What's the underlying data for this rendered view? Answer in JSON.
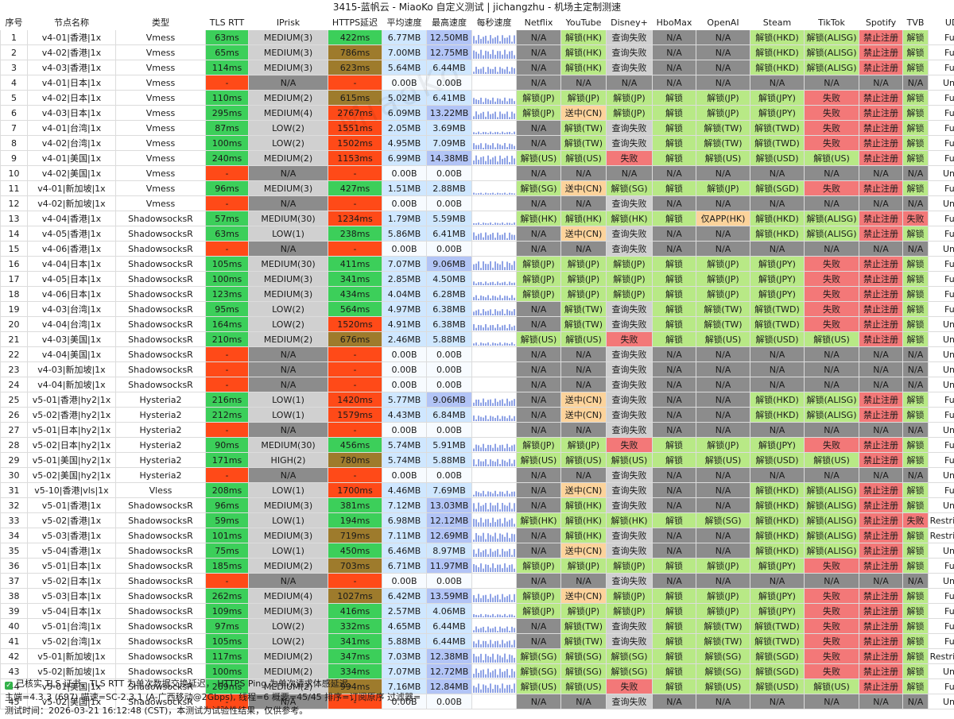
{
  "title": "3415-蓝帆云 - MiaoKo 自定义测试 | jichangzhu - 机场主定制测速",
  "watermark": "MiaoKo",
  "headers": [
    "序号",
    "节点名称",
    "类型",
    "TLS RTT",
    "IPrisk",
    "HTTPS延迟",
    "平均速度",
    "最高速度",
    "每秒速度",
    "Netflix",
    "YouTube",
    "Disney+",
    "HboMax",
    "OpenAI",
    "Steam",
    "TikTok",
    "Spotify",
    "TVB",
    "UDP类型"
  ],
  "rows": [
    [
      "1",
      "v4-01|香港|1x",
      "Vmess",
      "63ms",
      "MEDIUM(3)",
      "422ms",
      "6.77MB",
      "12.50MB",
      "",
      "N/A",
      "解锁(HK)",
      "查询失败",
      "N/A",
      "N/A",
      "解锁(HKD)",
      "解锁(ALISG)",
      "禁止注册",
      "解锁",
      "FullCone"
    ],
    [
      "2",
      "v4-02|香港|1x",
      "Vmess",
      "65ms",
      "MEDIUM(3)",
      "786ms",
      "7.00MB",
      "12.75MB",
      "",
      "N/A",
      "解锁(HK)",
      "查询失败",
      "N/A",
      "N/A",
      "解锁(HKD)",
      "解锁(ALISG)",
      "禁止注册",
      "解锁",
      "FullCone"
    ],
    [
      "3",
      "v4-03|香港|1x",
      "Vmess",
      "114ms",
      "MEDIUM(3)",
      "623ms",
      "5.64MB",
      "6.44MB",
      "",
      "N/A",
      "解锁(HK)",
      "查询失败",
      "N/A",
      "N/A",
      "解锁(HKD)",
      "解锁(ALISG)",
      "禁止注册",
      "解锁",
      "FullCone"
    ],
    [
      "4",
      "v4-01|日本|1x",
      "Vmess",
      "-",
      "N/A",
      "-",
      "0.00B",
      "0.00B",
      "",
      "N/A",
      "N/A",
      "N/A",
      "N/A",
      "N/A",
      "N/A",
      "N/A",
      "N/A",
      "N/A",
      "Unknown"
    ],
    [
      "5",
      "v4-02|日本|1x",
      "Vmess",
      "110ms",
      "MEDIUM(2)",
      "615ms",
      "5.02MB",
      "6.41MB",
      "",
      "解锁(JP)",
      "解锁(JP)",
      "解锁(JP)",
      "解锁",
      "解锁(JP)",
      "解锁(JPY)",
      "失败",
      "禁止注册",
      "解锁",
      "FullCone"
    ],
    [
      "6",
      "v4-03|日本|1x",
      "Vmess",
      "295ms",
      "MEDIUM(4)",
      "2767ms",
      "6.09MB",
      "13.22MB",
      "",
      "解锁(JP)",
      "送中(CN)",
      "解锁(JP)",
      "解锁",
      "解锁(JP)",
      "解锁(JPY)",
      "失败",
      "禁止注册",
      "解锁",
      "FullCone"
    ],
    [
      "7",
      "v4-01|台湾|1x",
      "Vmess",
      "87ms",
      "LOW(2)",
      "1551ms",
      "2.05MB",
      "3.69MB",
      "",
      "N/A",
      "解锁(TW)",
      "查询失败",
      "解锁",
      "解锁(TW)",
      "解锁(TWD)",
      "失败",
      "禁止注册",
      "解锁",
      "FullCone"
    ],
    [
      "8",
      "v4-02|台湾|1x",
      "Vmess",
      "100ms",
      "LOW(2)",
      "1502ms",
      "4.95MB",
      "7.09MB",
      "",
      "N/A",
      "解锁(TW)",
      "查询失败",
      "解锁",
      "解锁(TW)",
      "解锁(TWD)",
      "失败",
      "禁止注册",
      "解锁",
      "FullCone"
    ],
    [
      "9",
      "v4-01|美国|1x",
      "Vmess",
      "240ms",
      "MEDIUM(2)",
      "1153ms",
      "6.99MB",
      "14.38MB",
      "",
      "解锁(US)",
      "解锁(US)",
      "失败",
      "解锁",
      "解锁(US)",
      "解锁(USD)",
      "解锁(US)",
      "禁止注册",
      "解锁",
      "FullCone"
    ],
    [
      "10",
      "v4-02|美国|1x",
      "Vmess",
      "-",
      "N/A",
      "-",
      "0.00B",
      "0.00B",
      "",
      "N/A",
      "N/A",
      "N/A",
      "N/A",
      "N/A",
      "N/A",
      "N/A",
      "N/A",
      "N/A",
      "Unknown"
    ],
    [
      "11",
      "v4-01|新加坡|1x",
      "Vmess",
      "96ms",
      "MEDIUM(3)",
      "427ms",
      "1.51MB",
      "2.88MB",
      "",
      "解锁(SG)",
      "送中(CN)",
      "解锁(SG)",
      "解锁",
      "解锁(JP)",
      "解锁(SGD)",
      "失败",
      "禁止注册",
      "解锁",
      "FullCone"
    ],
    [
      "12",
      "v4-02|新加坡|1x",
      "Vmess",
      "-",
      "N/A",
      "-",
      "0.00B",
      "0.00B",
      "",
      "N/A",
      "N/A",
      "查询失败",
      "N/A",
      "N/A",
      "N/A",
      "N/A",
      "N/A",
      "N/A",
      "Unknown"
    ],
    [
      "13",
      "v4-04|香港|1x",
      "ShadowsocksR",
      "57ms",
      "MEDIUM(30)",
      "1234ms",
      "1.79MB",
      "5.59MB",
      "",
      "解锁(HK)",
      "解锁(HK)",
      "解锁(HK)",
      "解锁",
      "仅APP(HK)",
      "解锁(HKD)",
      "解锁(ALISG)",
      "禁止注册",
      "失败",
      "FullCone"
    ],
    [
      "14",
      "v4-05|香港|1x",
      "ShadowsocksR",
      "63ms",
      "LOW(1)",
      "238ms",
      "5.86MB",
      "6.41MB",
      "",
      "N/A",
      "送中(CN)",
      "查询失败",
      "N/A",
      "N/A",
      "解锁(HKD)",
      "解锁(ALISG)",
      "禁止注册",
      "解锁",
      "FullCone"
    ],
    [
      "15",
      "v4-06|香港|1x",
      "ShadowsocksR",
      "-",
      "N/A",
      "-",
      "0.00B",
      "0.00B",
      "",
      "N/A",
      "N/A",
      "查询失败",
      "N/A",
      "N/A",
      "N/A",
      "N/A",
      "N/A",
      "N/A",
      "Unknown"
    ],
    [
      "16",
      "v4-04|日本|1x",
      "ShadowsocksR",
      "105ms",
      "MEDIUM(30)",
      "411ms",
      "7.07MB",
      "9.06MB",
      "",
      "解锁(JP)",
      "解锁(JP)",
      "解锁(JP)",
      "解锁",
      "解锁(JP)",
      "解锁(JPY)",
      "失败",
      "禁止注册",
      "解锁",
      "FullCone"
    ],
    [
      "17",
      "v4-05|日本|1x",
      "ShadowsocksR",
      "100ms",
      "MEDIUM(3)",
      "341ms",
      "2.85MB",
      "4.50MB",
      "",
      "解锁(JP)",
      "解锁(JP)",
      "解锁(JP)",
      "解锁",
      "解锁(JP)",
      "解锁(JPY)",
      "失败",
      "禁止注册",
      "解锁",
      "FullCone"
    ],
    [
      "18",
      "v4-06|日本|1x",
      "ShadowsocksR",
      "123ms",
      "MEDIUM(3)",
      "434ms",
      "4.04MB",
      "6.28MB",
      "",
      "解锁(JP)",
      "解锁(JP)",
      "解锁(JP)",
      "解锁",
      "解锁(JP)",
      "解锁(JPY)",
      "失败",
      "禁止注册",
      "解锁",
      "FullCone"
    ],
    [
      "19",
      "v4-03|台湾|1x",
      "ShadowsocksR",
      "95ms",
      "LOW(2)",
      "564ms",
      "4.97MB",
      "6.38MB",
      "",
      "N/A",
      "解锁(TW)",
      "查询失败",
      "解锁",
      "解锁(TW)",
      "解锁(TWD)",
      "失败",
      "禁止注册",
      "解锁",
      "FullCone"
    ],
    [
      "20",
      "v4-04|台湾|1x",
      "ShadowsocksR",
      "164ms",
      "LOW(2)",
      "1520ms",
      "4.91MB",
      "6.38MB",
      "",
      "N/A",
      "解锁(TW)",
      "查询失败",
      "解锁",
      "解锁(TW)",
      "解锁(TWD)",
      "失败",
      "禁止注册",
      "解锁",
      "Unknown"
    ],
    [
      "21",
      "v4-03|美国|1x",
      "ShadowsocksR",
      "210ms",
      "MEDIUM(2)",
      "676ms",
      "2.46MB",
      "5.88MB",
      "",
      "解锁(US)",
      "解锁(US)",
      "失败",
      "解锁",
      "解锁(US)",
      "解锁(USD)",
      "解锁(US)",
      "禁止注册",
      "解锁",
      "Unknown"
    ],
    [
      "22",
      "v4-04|美国|1x",
      "ShadowsocksR",
      "-",
      "N/A",
      "-",
      "0.00B",
      "0.00B",
      "",
      "N/A",
      "N/A",
      "查询失败",
      "N/A",
      "N/A",
      "N/A",
      "N/A",
      "N/A",
      "N/A",
      "Unknown"
    ],
    [
      "23",
      "v4-03|新加坡|1x",
      "ShadowsocksR",
      "-",
      "N/A",
      "-",
      "0.00B",
      "0.00B",
      "",
      "N/A",
      "N/A",
      "查询失败",
      "N/A",
      "N/A",
      "N/A",
      "N/A",
      "N/A",
      "N/A",
      "Unknown"
    ],
    [
      "24",
      "v4-04|新加坡|1x",
      "ShadowsocksR",
      "-",
      "N/A",
      "-",
      "0.00B",
      "0.00B",
      "",
      "N/A",
      "N/A",
      "查询失败",
      "N/A",
      "N/A",
      "N/A",
      "N/A",
      "N/A",
      "N/A",
      "Unknown"
    ],
    [
      "25",
      "v5-01|香港|hy2|1x",
      "Hysteria2",
      "216ms",
      "LOW(1)",
      "1420ms",
      "5.77MB",
      "9.06MB",
      "",
      "N/A",
      "送中(CN)",
      "查询失败",
      "N/A",
      "N/A",
      "解锁(HKD)",
      "解锁(ALISG)",
      "禁止注册",
      "解锁",
      "FullCone"
    ],
    [
      "26",
      "v5-02|香港|hy2|1x",
      "Hysteria2",
      "212ms",
      "LOW(1)",
      "1579ms",
      "4.43MB",
      "6.84MB",
      "",
      "N/A",
      "送中(CN)",
      "查询失败",
      "N/A",
      "N/A",
      "解锁(HKD)",
      "解锁(ALISG)",
      "禁止注册",
      "解锁",
      "FullCone"
    ],
    [
      "27",
      "v5-01|日本|hy2|1x",
      "Hysteria2",
      "-",
      "N/A",
      "-",
      "0.00B",
      "0.00B",
      "",
      "N/A",
      "N/A",
      "查询失败",
      "N/A",
      "N/A",
      "N/A",
      "N/A",
      "N/A",
      "N/A",
      "Unknown"
    ],
    [
      "28",
      "v5-02|日本|hy2|1x",
      "Hysteria2",
      "90ms",
      "MEDIUM(30)",
      "456ms",
      "5.74MB",
      "5.91MB",
      "",
      "解锁(JP)",
      "解锁(JP)",
      "失败",
      "解锁",
      "解锁(JP)",
      "解锁(JPY)",
      "失败",
      "禁止注册",
      "解锁",
      "FullCone"
    ],
    [
      "29",
      "v5-01|美国|hy2|1x",
      "Hysteria2",
      "171ms",
      "HIGH(2)",
      "780ms",
      "5.74MB",
      "5.88MB",
      "",
      "解锁(US)",
      "解锁(US)",
      "解锁(US)",
      "解锁",
      "解锁(US)",
      "解锁(USD)",
      "解锁(US)",
      "禁止注册",
      "解锁",
      "FullCone"
    ],
    [
      "30",
      "v5-02|美国|hy2|1x",
      "Hysteria2",
      "-",
      "N/A",
      "-",
      "0.00B",
      "0.00B",
      "",
      "N/A",
      "N/A",
      "查询失败",
      "N/A",
      "N/A",
      "N/A",
      "N/A",
      "N/A",
      "N/A",
      "Unknown"
    ],
    [
      "31",
      "v5-10|香港|vls|1x",
      "Vless",
      "208ms",
      "LOW(1)",
      "1700ms",
      "4.46MB",
      "7.69MB",
      "",
      "N/A",
      "送中(CN)",
      "查询失败",
      "N/A",
      "N/A",
      "解锁(HKD)",
      "解锁(ALISG)",
      "禁止注册",
      "解锁",
      "FullCone"
    ],
    [
      "32",
      "v5-01|香港|1x",
      "ShadowsocksR",
      "96ms",
      "MEDIUM(3)",
      "381ms",
      "7.12MB",
      "13.03MB",
      "",
      "N/A",
      "解锁(HK)",
      "查询失败",
      "N/A",
      "N/A",
      "解锁(HKD)",
      "解锁(ALISG)",
      "禁止注册",
      "解锁",
      "Unknown"
    ],
    [
      "33",
      "v5-02|香港|1x",
      "ShadowsocksR",
      "59ms",
      "LOW(1)",
      "194ms",
      "6.98MB",
      "12.12MB",
      "",
      "解锁(HK)",
      "解锁(HK)",
      "解锁(HK)",
      "解锁",
      "解锁(SG)",
      "解锁(HKD)",
      "解锁(ALISG)",
      "禁止注册",
      "失败",
      "RestrictedCone"
    ],
    [
      "34",
      "v5-03|香港|1x",
      "ShadowsocksR",
      "101ms",
      "MEDIUM(3)",
      "719ms",
      "7.11MB",
      "12.69MB",
      "",
      "N/A",
      "解锁(HK)",
      "查询失败",
      "N/A",
      "N/A",
      "解锁(HKD)",
      "解锁(ALISG)",
      "禁止注册",
      "解锁",
      "RestrictedCone"
    ],
    [
      "35",
      "v5-04|香港|1x",
      "ShadowsocksR",
      "75ms",
      "LOW(1)",
      "450ms",
      "6.46MB",
      "8.97MB",
      "",
      "N/A",
      "送中(CN)",
      "查询失败",
      "N/A",
      "N/A",
      "解锁(HKD)",
      "解锁(ALISG)",
      "禁止注册",
      "解锁",
      "Unknown"
    ],
    [
      "36",
      "v5-01|日本|1x",
      "ShadowsocksR",
      "185ms",
      "MEDIUM(2)",
      "703ms",
      "6.71MB",
      "11.97MB",
      "",
      "解锁(JP)",
      "解锁(JP)",
      "解锁(JP)",
      "解锁",
      "解锁(JP)",
      "解锁(JPY)",
      "失败",
      "禁止注册",
      "解锁",
      "FullCone"
    ],
    [
      "37",
      "v5-02|日本|1x",
      "ShadowsocksR",
      "-",
      "N/A",
      "-",
      "0.00B",
      "0.00B",
      "",
      "N/A",
      "N/A",
      "查询失败",
      "N/A",
      "N/A",
      "N/A",
      "N/A",
      "N/A",
      "N/A",
      "Unknown"
    ],
    [
      "38",
      "v5-03|日本|1x",
      "ShadowsocksR",
      "262ms",
      "MEDIUM(4)",
      "1027ms",
      "6.42MB",
      "13.59MB",
      "",
      "解锁(JP)",
      "送中(CN)",
      "解锁(JP)",
      "解锁",
      "解锁(JP)",
      "解锁(JPY)",
      "失败",
      "禁止注册",
      "解锁",
      "FullCone"
    ],
    [
      "39",
      "v5-04|日本|1x",
      "ShadowsocksR",
      "109ms",
      "MEDIUM(3)",
      "416ms",
      "2.57MB",
      "4.06MB",
      "",
      "解锁(JP)",
      "解锁(JP)",
      "解锁(JP)",
      "解锁",
      "解锁(JP)",
      "解锁(JPY)",
      "失败",
      "禁止注册",
      "解锁",
      "FullCone"
    ],
    [
      "40",
      "v5-01|台湾|1x",
      "ShadowsocksR",
      "97ms",
      "LOW(2)",
      "332ms",
      "4.65MB",
      "6.44MB",
      "",
      "N/A",
      "解锁(TW)",
      "查询失败",
      "解锁",
      "解锁(TW)",
      "解锁(TWD)",
      "失败",
      "禁止注册",
      "解锁",
      "FullCone"
    ],
    [
      "41",
      "v5-02|台湾|1x",
      "ShadowsocksR",
      "105ms",
      "LOW(2)",
      "341ms",
      "5.88MB",
      "6.44MB",
      "",
      "N/A",
      "解锁(TW)",
      "查询失败",
      "解锁",
      "解锁(TW)",
      "解锁(TWD)",
      "失败",
      "禁止注册",
      "解锁",
      "FullCone"
    ],
    [
      "42",
      "v5-01|新加坡|1x",
      "ShadowsocksR",
      "117ms",
      "MEDIUM(2)",
      "347ms",
      "7.03MB",
      "12.38MB",
      "",
      "解锁(SG)",
      "解锁(SG)",
      "解锁(SG)",
      "解锁",
      "解锁(SG)",
      "解锁(SGD)",
      "失败",
      "禁止注册",
      "解锁",
      "RestrictedCone"
    ],
    [
      "43",
      "v5-02|新加坡|1x",
      "ShadowsocksR",
      "100ms",
      "MEDIUM(2)",
      "334ms",
      "7.07MB",
      "12.72MB",
      "",
      "解锁(SG)",
      "解锁(SG)",
      "解锁(SG)",
      "解锁",
      "解锁(SG)",
      "解锁(SGD)",
      "失败",
      "禁止注册",
      "解锁",
      "Unknown"
    ],
    [
      "44",
      "v5-01|美国|1x",
      "ShadowsocksR",
      "269ms",
      "MEDIUM(2)",
      "994ms",
      "7.16MB",
      "12.84MB",
      "",
      "解锁(US)",
      "解锁(US)",
      "失败",
      "解锁",
      "解锁(US)",
      "解锁(USD)",
      "解锁(US)",
      "禁止注册",
      "解锁",
      "FullCone"
    ],
    [
      "45",
      "v5-02|美国|1x",
      "ShadowsocksR",
      "-",
      "N/A",
      "-",
      "0.00B",
      "0.00B",
      "",
      "N/A",
      "N/A",
      "查询失败",
      "N/A",
      "N/A",
      "N/A",
      "N/A",
      "N/A",
      "N/A",
      "Unknown"
    ]
  ],
  "footer": {
    "line1": "已核实 TLS 证书。TLS RTT 为单次数据交换延迟， HTTPS Ping 为单次请求体感延迟。",
    "line2": "主端=4.3.3 (697) 喵速=SC-2.3.1 (A-广西移动@2Gbps), 线程=6 概要=45/45 排序=订阅原序 过滤器=",
    "line3": "测试时间：2026-03-21 16:12:48 (CST)，本测试为试验性结果，仅供参考。"
  },
  "colors": {
    "good": "#3ccf5a",
    "unlock": "#b8e986",
    "fail": "#f37878",
    "error": "#ff4a18",
    "sent_cn": "#fcd39b",
    "na": "#8c8c8c",
    "query_fail": "#d0d0d0",
    "warn": "#9e7b2c",
    "speed_light": "#cfe7ff",
    "speed_mid": "#b2c4f6",
    "spark": "#8fa3e6"
  }
}
